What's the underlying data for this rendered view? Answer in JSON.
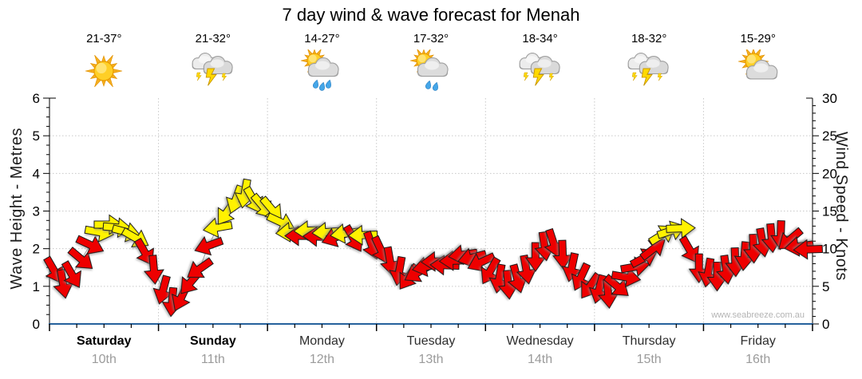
{
  "title": "7 day wind & wave forecast for Menah",
  "watermark": "www.seabreeze.com.au",
  "forecast": [
    {
      "name": "Saturday",
      "date": "10th",
      "temp": "21-37°",
      "icon": "sunny",
      "drops": 0,
      "bold": true
    },
    {
      "name": "Sunday",
      "date": "11th",
      "temp": "21-32°",
      "icon": "thunderstorm",
      "drops": 0,
      "bold": true
    },
    {
      "name": "Monday",
      "date": "12th",
      "temp": "14-27°",
      "icon": "sun-showers",
      "drops": 3,
      "bold": false
    },
    {
      "name": "Tuesday",
      "date": "13th",
      "temp": "17-32°",
      "icon": "sun-showers",
      "drops": 2,
      "bold": false
    },
    {
      "name": "Wednesday",
      "date": "14th",
      "temp": "18-34°",
      "icon": "thunderstorm",
      "drops": 0,
      "bold": false
    },
    {
      "name": "Thursday",
      "date": "15th",
      "temp": "18-32°",
      "icon": "thunderstorm",
      "drops": 0,
      "bold": false
    },
    {
      "name": "Friday",
      "date": "16th",
      "temp": "15-29°",
      "icon": "partly-cloudy",
      "drops": 0,
      "bold": false
    }
  ],
  "chart_data": {
    "type": "wind-arrows",
    "title": "7 day wind & wave forecast for Menah",
    "left_axis": {
      "label": "Wave Height - Metres",
      "min": 0,
      "max": 6,
      "major_step": 1,
      "minor_step": 0.25
    },
    "right_axis": {
      "label": "Wind Speed - Knots",
      "min": 0,
      "max": 30,
      "major_step": 5,
      "minor_step": 1
    },
    "grid": {
      "h_values_m": [
        1,
        2,
        3,
        4,
        5
      ],
      "vertical_at_day_boundaries": true
    },
    "x_days": [
      "Saturday 10th",
      "Sunday 11th",
      "Monday 12th",
      "Tuesday 13th",
      "Wednesday 14th",
      "Thursday 15th",
      "Friday 16th"
    ],
    "arrows_per_day": 12,
    "wind_knots": [
      7.1,
      5.3,
      6.5,
      8.6,
      10.5,
      12.2,
      13.2,
      12.8,
      12.2,
      11.4,
      9.5,
      7.2,
      4.5,
      2.9,
      3.5,
      5.5,
      7.3,
      10.4,
      12.8,
      14.8,
      16.5,
      17.3,
      16.4,
      15.6,
      15.2,
      13.5,
      12.2,
      11.7,
      12.4,
      11.6,
      12.2,
      11.5,
      12.0,
      11.3,
      11.8,
      10.4,
      9.8,
      8.3,
      7.0,
      6.2,
      6.8,
      7.6,
      8.3,
      7.8,
      8.4,
      9.2,
      8.8,
      8.2,
      7.0,
      6.0,
      5.2,
      6.0,
      7.2,
      8.9,
      10.3,
      10.7,
      9.2,
      7.5,
      6.2,
      5.0,
      4.6,
      4.0,
      5.0,
      6.2,
      7.6,
      8.8,
      10.0,
      11.9,
      12.4,
      12.7,
      9.8,
      7.4,
      6.8,
      6.3,
      7.2,
      8.2,
      9.0,
      10.0,
      10.8,
      11.4,
      11.8,
      11.2,
      10.3,
      9.9
    ],
    "wind_dir_deg": [
      150,
      170,
      150,
      130,
      115,
      100,
      90,
      95,
      105,
      120,
      150,
      175,
      195,
      185,
      205,
      220,
      235,
      250,
      260,
      215,
      200,
      190,
      150,
      140,
      140,
      115,
      265,
      270,
      268,
      272,
      266,
      250,
      262,
      150,
      268,
      160,
      155,
      170,
      190,
      215,
      240,
      258,
      268,
      272,
      268,
      262,
      255,
      245,
      210,
      190,
      175,
      165,
      170,
      180,
      172,
      162,
      178,
      192,
      205,
      215,
      195,
      175,
      130,
      100,
      80,
      62,
      52,
      58,
      72,
      88,
      150,
      180,
      190,
      180,
      172,
      178,
      185,
      178,
      170,
      175,
      182,
      230,
      262,
      268
    ],
    "arrow_colors": [
      "r",
      "r",
      "r",
      "r",
      "r",
      "y",
      "y",
      "y",
      "y",
      "y",
      "r",
      "r",
      "r",
      "r",
      "r",
      "r",
      "r",
      "r",
      "y",
      "y",
      "y",
      "y",
      "y",
      "y",
      "y",
      "y",
      "y",
      "r",
      "y",
      "r",
      "y",
      "r",
      "y",
      "r",
      "y",
      "r",
      "r",
      "r",
      "r",
      "r",
      "r",
      "r",
      "r",
      "r",
      "r",
      "r",
      "r",
      "r",
      "r",
      "r",
      "r",
      "r",
      "r",
      "r",
      "r",
      "r",
      "r",
      "r",
      "r",
      "r",
      "r",
      "r",
      "r",
      "r",
      "r",
      "r",
      "r",
      "y",
      "y",
      "y",
      "r",
      "r",
      "r",
      "r",
      "r",
      "r",
      "r",
      "r",
      "r",
      "r",
      "r",
      "r",
      "r",
      "r"
    ],
    "color_map": {
      "r": "#ee0000",
      "y": "#fff200"
    }
  },
  "colors": {
    "arrow_red": "#ee0000",
    "arrow_yellow": "#fff200",
    "arrow_outline": "#1a1a1a",
    "x_axis_blue": "#25619c",
    "grid_gray": "#c8c8c8",
    "tick_black": "#000000",
    "date_gray": "#9b9b9b",
    "watermark_gray": "#b4b4b4"
  }
}
